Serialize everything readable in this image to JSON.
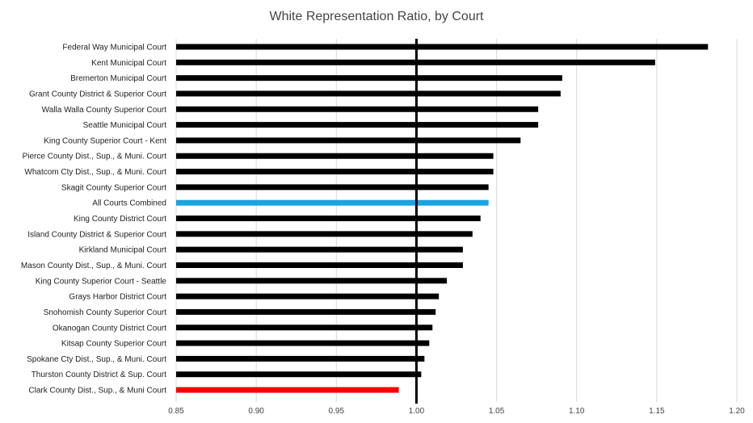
{
  "chart_data": {
    "type": "bar",
    "orientation": "horizontal",
    "title": "White Representation Ratio, by Court",
    "xlabel": "",
    "ylabel": "",
    "xlim": [
      0.85,
      1.2
    ],
    "x_ticks": [
      "0.85",
      "0.90",
      "0.95",
      "1.00",
      "1.05",
      "1.10",
      "1.15",
      "1.20"
    ],
    "reference_line": 1.0,
    "grid": "vertical",
    "legend": "none",
    "colors": {
      "default": "#000000",
      "highlight_combined": "#1aa3e0",
      "highlight_below": "#ff0000",
      "grid": "#d9d9d9"
    },
    "categories": [
      "Federal Way Municipal Court",
      "Kent Municipal Court",
      "Bremerton Municipal Court",
      "Grant County District & Superior Court",
      "Walla Walla County Superior Court",
      "Seattle Municipal Court",
      "King County Superior Court - Kent",
      "Pierce County Dist., Sup., & Muni. Court",
      "Whatcom Cty Dist., Sup., & Muni. Court",
      "Skagit County Superior Court",
      "All Courts Combined",
      "King County District Court",
      "Island County District & Superior Court",
      "Kirkland Municipal Court",
      "Mason County Dist., Sup., & Muni. Court",
      "King County Superior Court - Seattle",
      "Grays Harbor District Court",
      "Snohomish County Superior Court",
      "Okanogan County District Court",
      "Kitsap County Superior Court",
      "Spokane Cty Dist., Sup., & Muni. Court",
      "Thurston County District & Sup. Court",
      "Clark County Dist., Sup., & Muni Court"
    ],
    "values": [
      1.182,
      1.149,
      1.091,
      1.09,
      1.076,
      1.076,
      1.065,
      1.048,
      1.048,
      1.045,
      1.045,
      1.04,
      1.035,
      1.029,
      1.029,
      1.019,
      1.014,
      1.012,
      1.01,
      1.008,
      1.005,
      1.003,
      0.989
    ],
    "bar_colors": [
      "#000000",
      "#000000",
      "#000000",
      "#000000",
      "#000000",
      "#000000",
      "#000000",
      "#000000",
      "#000000",
      "#000000",
      "#1aa3e0",
      "#000000",
      "#000000",
      "#000000",
      "#000000",
      "#000000",
      "#000000",
      "#000000",
      "#000000",
      "#000000",
      "#000000",
      "#000000",
      "#ff0000"
    ]
  }
}
